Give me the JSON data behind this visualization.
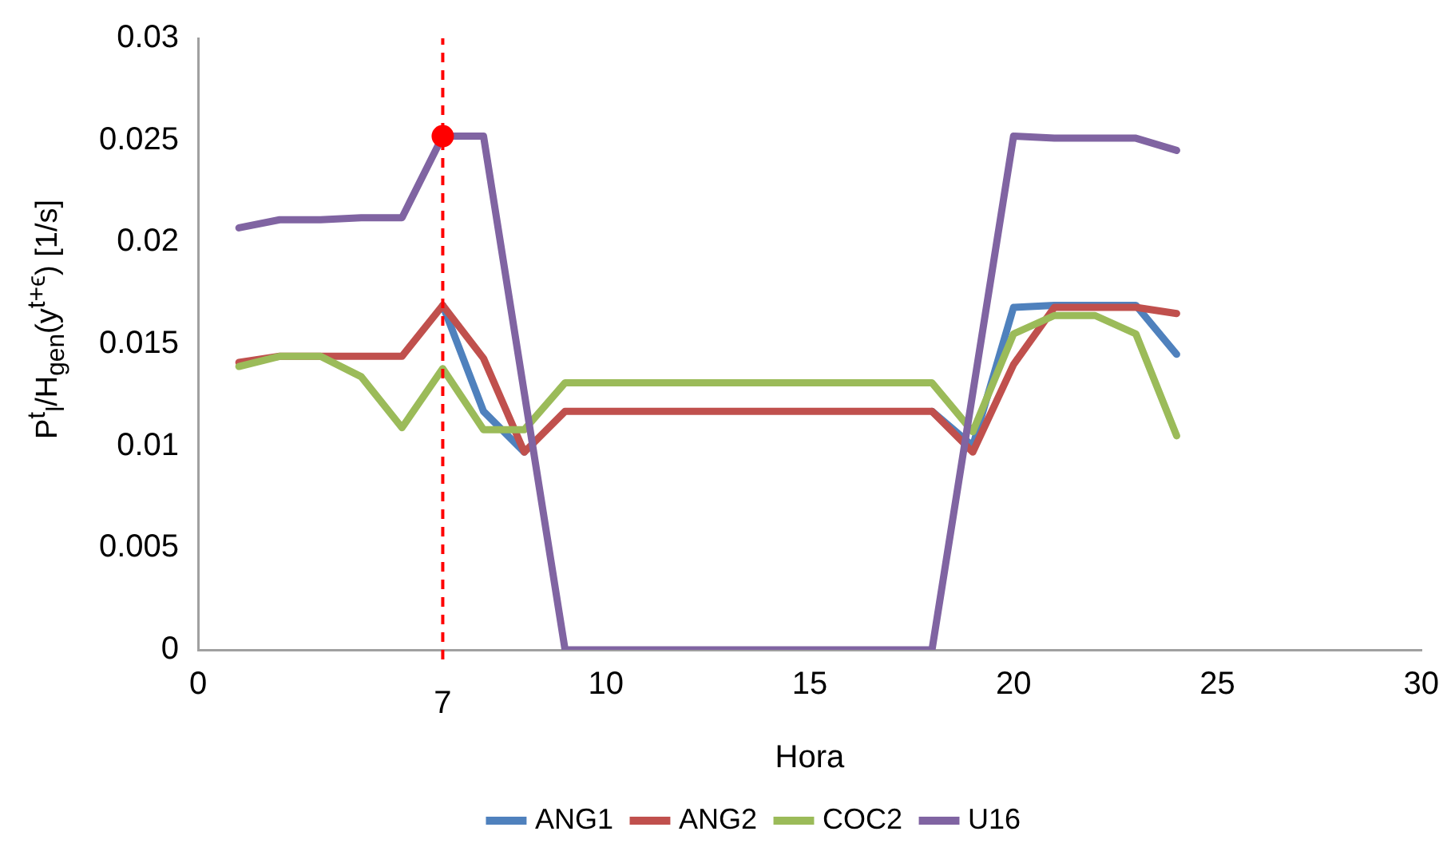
{
  "chart_data": {
    "type": "line",
    "xlabel": "Hora",
    "ylabel": "P$^{t}$$_{l}$/H$_{gen}$(y$^{t+ϵ}$)  [1/s]",
    "x": [
      1,
      2,
      3,
      4,
      5,
      6,
      7,
      8,
      9,
      10,
      11,
      12,
      13,
      14,
      15,
      16,
      17,
      18,
      19,
      20,
      21,
      22,
      23,
      24
    ],
    "series": [
      {
        "name": "ANG1",
        "color": "#4f81bd",
        "values": [
          null,
          null,
          null,
          null,
          null,
          0.0169,
          0.0117,
          0.0097,
          null,
          null,
          null,
          null,
          null,
          null,
          null,
          null,
          null,
          0.0117,
          0.01,
          0.0168,
          0.0169,
          0.0169,
          0.0169,
          0.0145
        ]
      },
      {
        "name": "ANG2",
        "color": "#c0504d",
        "values": [
          0.0141,
          0.0144,
          0.0144,
          0.0144,
          0.0144,
          0.0169,
          0.0143,
          0.0097,
          0.0117,
          0.0117,
          0.0117,
          0.0117,
          0.0117,
          0.0117,
          0.0117,
          0.0117,
          0.0117,
          0.0117,
          0.0097,
          0.014,
          0.0168,
          0.0168,
          0.0168,
          0.0165
        ]
      },
      {
        "name": "COC2",
        "color": "#9bbb59",
        "values": [
          0.0139,
          0.0144,
          0.0144,
          0.0134,
          0.0109,
          0.0138,
          0.0108,
          0.0108,
          0.0131,
          0.0131,
          0.0131,
          0.0131,
          0.0131,
          0.0131,
          0.0131,
          0.0131,
          0.0131,
          0.0131,
          0.0107,
          0.0155,
          0.0164,
          0.0164,
          0.0155,
          0.0105
        ]
      },
      {
        "name": "U16",
        "color": "#8064a2",
        "values": [
          0.0207,
          0.0211,
          0.0211,
          0.0212,
          0.0212,
          0.0252,
          0.0252,
          0.0126,
          0,
          0,
          0,
          0,
          0,
          0,
          0,
          0,
          0,
          0,
          0.0126,
          0.0252,
          0.0251,
          0.0251,
          0.0251,
          0.0245
        ]
      },
      {
        "type": "scatter",
        "color": "#ff0000",
        "x": [
          6
        ],
        "values": [
          0.0252
        ],
        "marker": "circle"
      }
    ],
    "xlim": [
      0,
      30
    ],
    "xticks": [
      0,
      10,
      15,
      20,
      25,
      30
    ],
    "ylim": [
      0,
      0.03
    ],
    "yticks": [
      0,
      0.005,
      0.01,
      0.015,
      0.02,
      0.025,
      0.03
    ],
    "ref_lines": [
      {
        "axis": "x",
        "value": 6,
        "color": "#ff0000",
        "line_style": "dashed"
      }
    ],
    "annotations": [
      {
        "text": "7",
        "x": 6,
        "y": 0
      }
    ],
    "grid": false,
    "legend": "bottom",
    "marker": "none",
    "line_style": "solid"
  }
}
